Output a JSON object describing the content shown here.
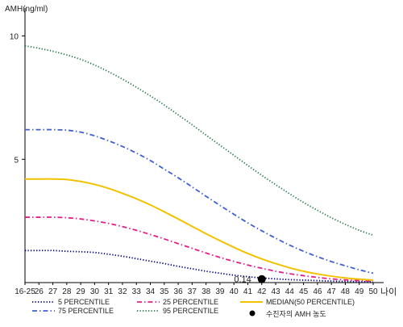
{
  "chart_data": {
    "type": "line",
    "ylabel": "AMH(ng/ml)",
    "xlabel": "나이",
    "categories": [
      "16-25",
      "26",
      "27",
      "28",
      "29",
      "30",
      "31",
      "32",
      "33",
      "34",
      "35",
      "36",
      "37",
      "38",
      "39",
      "40",
      "41",
      "42",
      "43",
      "44",
      "45",
      "46",
      "47",
      "48",
      "49",
      "50"
    ],
    "y_ticks": [
      5,
      10
    ],
    "ylim": [
      0,
      11
    ],
    "grid": false,
    "legend_position": "bottom",
    "series": [
      {
        "name": "5 PERCENTILE",
        "color": "#000080",
        "dash": "dotted",
        "values": [
          1.3,
          1.3,
          1.3,
          1.27,
          1.25,
          1.22,
          1.15,
          1.07,
          0.97,
          0.87,
          0.77,
          0.66,
          0.56,
          0.46,
          0.38,
          0.3,
          0.24,
          0.19,
          0.15,
          0.12,
          0.1,
          0.08,
          0.06,
          0.05,
          0.04,
          0.03
        ]
      },
      {
        "name": "75 PERCENTILE",
        "color": "#4060d0",
        "dash": "dashdot",
        "values": [
          6.2,
          6.2,
          6.2,
          6.18,
          6.1,
          5.95,
          5.75,
          5.52,
          5.25,
          4.95,
          4.6,
          4.25,
          3.88,
          3.5,
          3.13,
          2.77,
          2.42,
          2.1,
          1.8,
          1.52,
          1.27,
          1.05,
          0.85,
          0.68,
          0.52,
          0.38
        ]
      },
      {
        "name": "25 PERCENTILE",
        "color": "#e0208a",
        "dash": "dashdot",
        "values": [
          2.65,
          2.65,
          2.65,
          2.63,
          2.58,
          2.5,
          2.4,
          2.27,
          2.12,
          1.95,
          1.77,
          1.58,
          1.39,
          1.2,
          1.02,
          0.86,
          0.71,
          0.58,
          0.46,
          0.36,
          0.28,
          0.21,
          0.15,
          0.11,
          0.08,
          0.06
        ]
      },
      {
        "name": "95 PERCENTILE",
        "color": "#2a7a50",
        "dash": "dotted",
        "values": [
          9.6,
          9.5,
          9.38,
          9.23,
          9.05,
          8.82,
          8.55,
          8.25,
          7.92,
          7.57,
          7.2,
          6.8,
          6.4,
          5.98,
          5.57,
          5.16,
          4.75,
          4.35,
          3.97,
          3.6,
          3.25,
          2.93,
          2.63,
          2.36,
          2.12,
          1.92
        ]
      },
      {
        "name": "MEDIAN(50 PERCENTILE)",
        "color": "#f2c200",
        "dash": "solid",
        "values": [
          4.2,
          4.2,
          4.2,
          4.18,
          4.1,
          3.98,
          3.82,
          3.62,
          3.4,
          3.15,
          2.87,
          2.58,
          2.28,
          1.98,
          1.7,
          1.43,
          1.18,
          0.96,
          0.77,
          0.6,
          0.46,
          0.35,
          0.26,
          0.19,
          0.14,
          0.1
        ]
      }
    ],
    "patient_point": {
      "name": "수진자의 AMH 농도",
      "x": "42",
      "y": 0.14,
      "label": "0.14",
      "color": "#000000"
    }
  }
}
